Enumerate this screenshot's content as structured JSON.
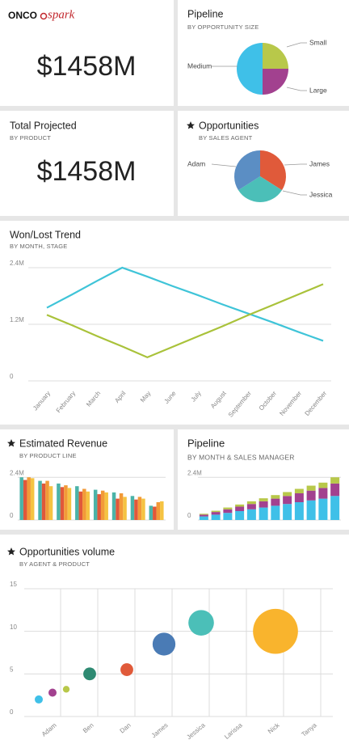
{
  "brand": {
    "onco": "ONCO",
    "spark": "spark"
  },
  "kpis": [
    {
      "value": "$1458M"
    },
    {
      "title": "Total Projected",
      "subtitle": "BY PRODUCT",
      "value": "$1458M"
    }
  ],
  "chart_data": [
    {
      "type": "pie",
      "title": "Pipeline",
      "subtitle": "BY OPPORTUNITY SIZE",
      "categories": [
        "Small",
        "Large",
        "Medium"
      ],
      "values": [
        25,
        25,
        50
      ],
      "colors": [
        "#b8c84a",
        "#a2418f",
        "#3fc0e8"
      ]
    },
    {
      "type": "pie",
      "title": "Opportunities",
      "subtitle": "BY SALES AGENT",
      "categories": [
        "James",
        "Jessica",
        "Adam"
      ],
      "values": [
        34,
        32,
        34
      ],
      "colors": [
        "#e05a3a",
        "#4bbfb8",
        "#5b8ec4"
      ]
    },
    {
      "type": "line",
      "title": "Won/Lost Trend",
      "subtitle": "BY MONTH, STAGE",
      "categories": [
        "January",
        "February",
        "March",
        "April",
        "May",
        "June",
        "July",
        "August",
        "September",
        "October",
        "November",
        "December"
      ],
      "series": [
        {
          "color": "#3fc4d8",
          "values": [
            1.55,
            1.83,
            2.12,
            2.4,
            2.21,
            2.01,
            1.82,
            1.62,
            1.43,
            1.24,
            1.04,
            0.85
          ]
        },
        {
          "color": "#a9c23a",
          "values": [
            1.4,
            1.18,
            0.95,
            0.73,
            0.5,
            0.72,
            0.94,
            1.16,
            1.39,
            1.61,
            1.83,
            2.05
          ]
        }
      ],
      "ylim": [
        0,
        2.4
      ],
      "yticks": [
        0,
        {
          "value": 1.2,
          "label": "1.2M"
        },
        {
          "value": 2.4,
          "label": "2.4M"
        }
      ],
      "grid": true
    },
    {
      "type": "bar",
      "title": "Estimated Revenue",
      "subtitle": "BY PRODUCT LINE",
      "categories": [
        null,
        null,
        null,
        null,
        null,
        null,
        null,
        null
      ],
      "series": [
        {
          "color": "#4bb3a8",
          "values": [
            2.4,
            2.2,
            2.05,
            1.9,
            1.7,
            1.55,
            1.35,
            0.8
          ]
        },
        {
          "color": "#e0583a",
          "values": [
            2.25,
            2.05,
            1.85,
            1.6,
            1.45,
            1.2,
            1.15,
            0.75
          ]
        },
        {
          "color": "#f29a38",
          "values": [
            2.4,
            2.2,
            1.95,
            1.75,
            1.65,
            1.5,
            1.3,
            1.0
          ]
        },
        {
          "color": "#f5c342",
          "values": [
            2.35,
            1.9,
            1.8,
            1.6,
            1.55,
            1.3,
            1.2,
            1.05
          ]
        }
      ],
      "ylim": [
        0,
        2.5
      ],
      "yticks": [
        0,
        {
          "value": 2.4,
          "label": "2.4M"
        }
      ],
      "grid": true
    },
    {
      "type": "bar",
      "stacked": true,
      "title": "Pipeline",
      "subtitle": "BY MONTH & SALES MANAGER",
      "categories": [
        null,
        null,
        null,
        null,
        null,
        null,
        null,
        null,
        null,
        null,
        null,
        null
      ],
      "series": [
        {
          "color": "#3fc0e8",
          "values": [
            0.2,
            0.3,
            0.4,
            0.5,
            0.6,
            0.7,
            0.8,
            0.9,
            1.0,
            1.1,
            1.2,
            1.35
          ]
        },
        {
          "color": "#a2418f",
          "values": [
            0.1,
            0.15,
            0.2,
            0.25,
            0.3,
            0.35,
            0.4,
            0.45,
            0.5,
            0.55,
            0.6,
            0.7
          ]
        },
        {
          "color": "#b8c84a",
          "values": [
            0.05,
            0.07,
            0.1,
            0.12,
            0.15,
            0.17,
            0.2,
            0.22,
            0.25,
            0.28,
            0.3,
            0.35
          ]
        }
      ],
      "ylim": [
        0,
        2.5
      ],
      "yticks": [
        0,
        {
          "value": 2.4,
          "label": "2.4M"
        }
      ],
      "grid": true
    },
    {
      "type": "bubble",
      "title": "Opportunities volume",
      "subtitle": "BY AGENT & PRODUCT",
      "categories": [
        "Adam",
        "Ben",
        "Dan",
        "James",
        "Jessica",
        "Larissa",
        "Nick",
        "Tanya"
      ],
      "points": [
        {
          "x": "Adam",
          "y": 2,
          "size": 1,
          "color": "#3fc0e8"
        },
        {
          "x": "Adam",
          "y": 2.8,
          "size": 1,
          "color": "#a2418f"
        },
        {
          "x": "Adam",
          "y": 3.2,
          "size": 0.7,
          "color": "#b8c84a"
        },
        {
          "x": "Ben",
          "y": 5,
          "size": 2.5,
          "color": "#2e8a72"
        },
        {
          "x": "Dan",
          "y": 5.5,
          "size": 2.5,
          "color": "#e05a3a"
        },
        {
          "x": "James",
          "y": 8.5,
          "size": 8,
          "color": "#4a7bb5"
        },
        {
          "x": "Jessica",
          "y": 11,
          "size": 10,
          "color": "#4bbfb8"
        },
        {
          "x": "Nick",
          "y": 10,
          "size": 31,
          "color": "#f9b42d"
        }
      ],
      "ylim": [
        0,
        15
      ],
      "yticks": [
        0,
        5,
        10,
        15
      ],
      "grid": true
    }
  ]
}
